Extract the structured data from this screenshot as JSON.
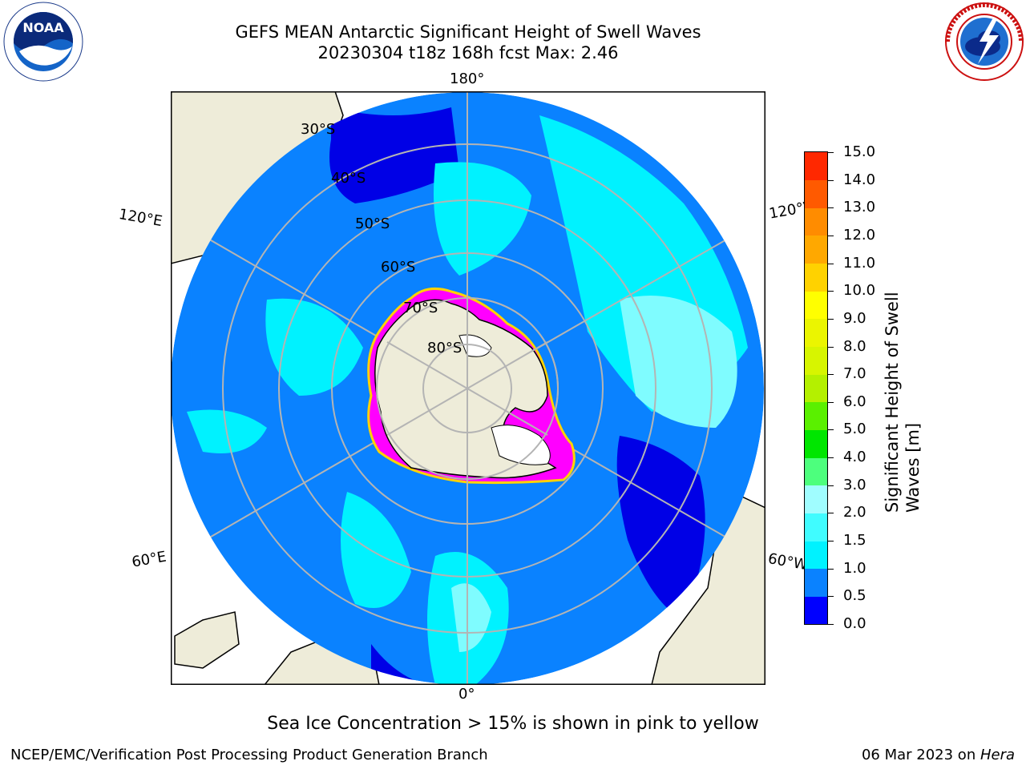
{
  "header": {
    "title_line1": "GEFS MEAN Antarctic Significant Height of Swell Waves",
    "title_line2": "20230304 t18z 168h fcst   Max: 2.46"
  },
  "logos": {
    "left": {
      "icon": "noaa-logo-icon",
      "text": "NOAA"
    },
    "right": {
      "icon": "national-weather-service-logo-icon"
    }
  },
  "map": {
    "projection": "south-polar-stereographic",
    "latitude_labels": [
      "30°S",
      "40°S",
      "50°S",
      "60°S",
      "70°S",
      "80°S"
    ],
    "longitude_labels": {
      "top": "180°",
      "upper_left": "120°E",
      "upper_right": "120°W",
      "lower_left": "60°E",
      "lower_right": "60°W",
      "bottom": "0°"
    },
    "colors": {
      "land": "#eeecd9",
      "ocean_low": "#0a82ff",
      "ocean_mid": "#00f2ff",
      "ocean_high": "#7ffcff",
      "ocean_calm": "#0000e6",
      "sea_ice": "#ff00ff",
      "grid": "#b4b4b4"
    }
  },
  "colorbar": {
    "label": "Significant Height of Swell Waves [m]",
    "ticks": [
      "15.0",
      "14.0",
      "13.0",
      "12.0",
      "11.0",
      "10.0",
      "9.0",
      "8.0",
      "7.0",
      "6.0",
      "5.0",
      "4.0",
      "3.0",
      "2.0",
      "1.5",
      "1.0",
      "0.5",
      "0.0"
    ],
    "colors": [
      "#0000ff",
      "#0a82ff",
      "#00f2ff",
      "#40fcff",
      "#a0fdff",
      "#4dff7d",
      "#00e600",
      "#5af000",
      "#b4f000",
      "#d7f500",
      "#ebf500",
      "#ffff00",
      "#ffd200",
      "#ffa800",
      "#ff8c00",
      "#ff5a00",
      "#ff2800"
    ]
  },
  "note": "Sea Ice Concentration > 15% is shown in pink to yellow",
  "footer": {
    "left": "NCEP/EMC/Verification Post Processing Product Generation Branch",
    "right_date": "06 Mar 2023 on ",
    "right_host": "Hera"
  }
}
